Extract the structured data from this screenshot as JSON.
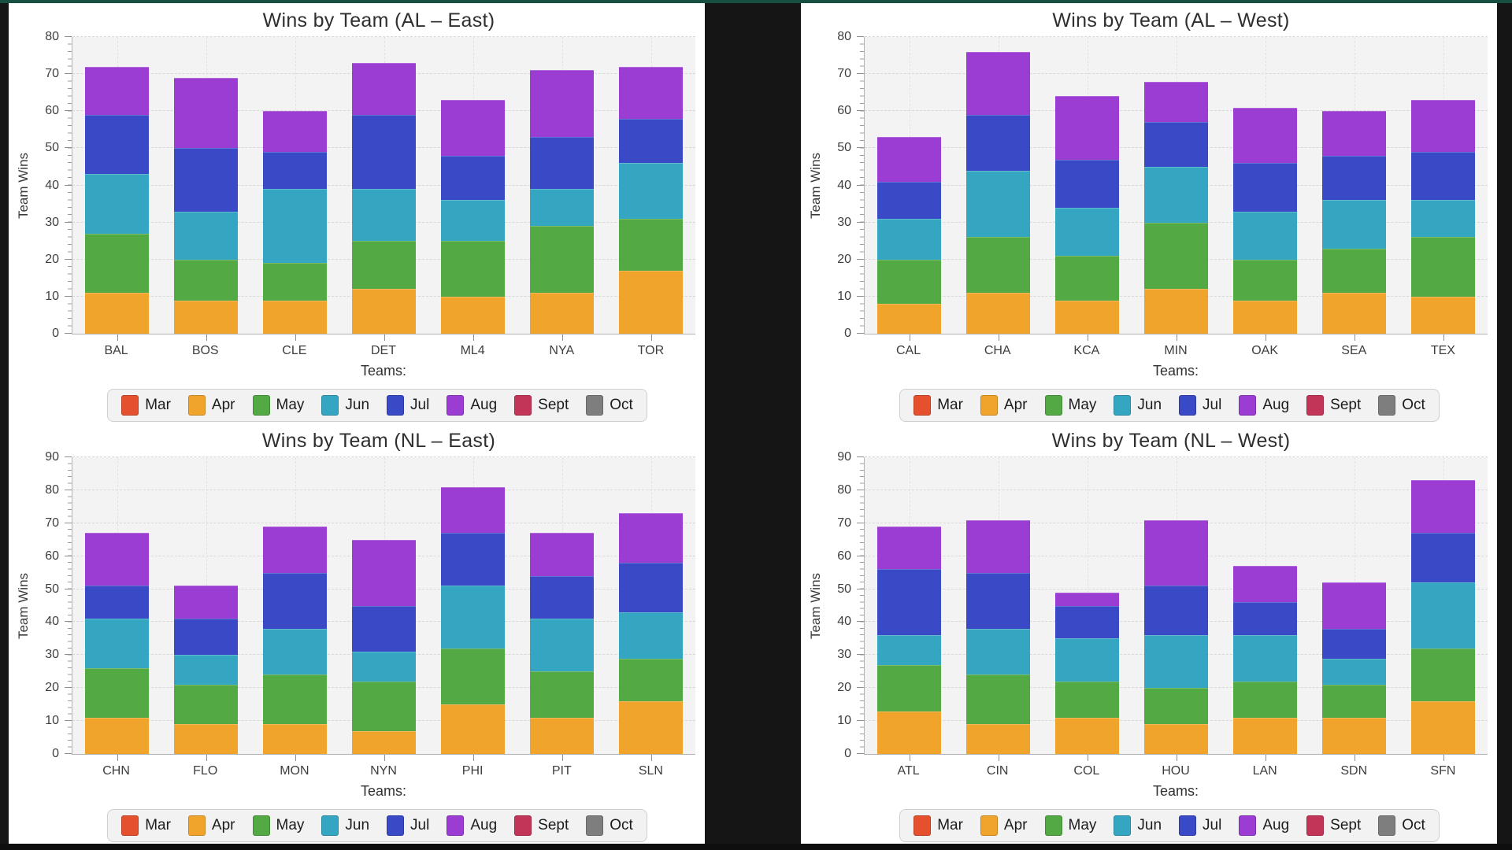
{
  "palette": {
    "page_bg": "#151515",
    "top_strip": "#155040",
    "panel_bg": "#ffffff",
    "plot_bg": "#f3f3f3"
  },
  "months": [
    {
      "label": "Mar",
      "color": "#E5502E"
    },
    {
      "label": "Apr",
      "color": "#F1A42C"
    },
    {
      "label": "May",
      "color": "#53A943"
    },
    {
      "label": "Jun",
      "color": "#35A6C2"
    },
    {
      "label": "Jul",
      "color": "#3A49C6"
    },
    {
      "label": "Aug",
      "color": "#9B3CD3"
    },
    {
      "label": "Sept",
      "color": "#C23458"
    },
    {
      "label": "Oct",
      "color": "#7E7E7E"
    }
  ],
  "chart_data": [
    {
      "type": "bar",
      "stacked": true,
      "title": "Wins by Team (AL – East)",
      "xlabel": "Teams:",
      "ylabel": "Team Wins",
      "ylim": [
        0,
        80
      ],
      "ytick_interval": 10,
      "grid": true,
      "legend_position": "bottom",
      "categories": [
        "BAL",
        "BOS",
        "CLE",
        "DET",
        "ML4",
        "NYA",
        "TOR"
      ],
      "series": [
        {
          "name": "Mar",
          "values": [
            0,
            0,
            0,
            0,
            0,
            0,
            0
          ]
        },
        {
          "name": "Apr",
          "values": [
            11,
            9,
            9,
            12,
            10,
            11,
            17
          ]
        },
        {
          "name": "May",
          "values": [
            16,
            11,
            10,
            13,
            15,
            18,
            14
          ]
        },
        {
          "name": "Jun",
          "values": [
            16,
            13,
            20,
            14,
            11,
            10,
            15
          ]
        },
        {
          "name": "Jul",
          "values": [
            16,
            17,
            10,
            20,
            12,
            14,
            12
          ]
        },
        {
          "name": "Aug",
          "values": [
            13,
            19,
            11,
            14,
            15,
            18,
            14
          ]
        },
        {
          "name": "Sept",
          "values": [
            0,
            0,
            0,
            0,
            0,
            0,
            0
          ]
        },
        {
          "name": "Oct",
          "values": [
            0,
            0,
            0,
            0,
            0,
            0,
            0
          ]
        }
      ]
    },
    {
      "type": "bar",
      "stacked": true,
      "title": "Wins by Team (AL – West)",
      "xlabel": "Teams:",
      "ylabel": "Team Wins",
      "ylim": [
        0,
        80
      ],
      "ytick_interval": 10,
      "grid": true,
      "legend_position": "bottom",
      "categories": [
        "CAL",
        "CHA",
        "KCA",
        "MIN",
        "OAK",
        "SEA",
        "TEX"
      ],
      "series": [
        {
          "name": "Mar",
          "values": [
            0,
            0,
            0,
            0,
            0,
            0,
            0
          ]
        },
        {
          "name": "Apr",
          "values": [
            8,
            11,
            9,
            12,
            9,
            11,
            10
          ]
        },
        {
          "name": "May",
          "values": [
            12,
            15,
            12,
            18,
            11,
            12,
            16
          ]
        },
        {
          "name": "Jun",
          "values": [
            11,
            18,
            13,
            15,
            13,
            13,
            10
          ]
        },
        {
          "name": "Jul",
          "values": [
            10,
            15,
            13,
            12,
            13,
            12,
            13
          ]
        },
        {
          "name": "Aug",
          "values": [
            12,
            17,
            17,
            11,
            15,
            12,
            14
          ]
        },
        {
          "name": "Sept",
          "values": [
            0,
            0,
            0,
            0,
            0,
            0,
            0
          ]
        },
        {
          "name": "Oct",
          "values": [
            0,
            0,
            0,
            0,
            0,
            0,
            0
          ]
        }
      ]
    },
    {
      "type": "bar",
      "stacked": true,
      "title": "Wins by Team (NL – East)",
      "xlabel": "Teams:",
      "ylabel": "Team Wins",
      "ylim": [
        0,
        90
      ],
      "ytick_interval": 10,
      "grid": true,
      "legend_position": "bottom",
      "categories": [
        "CHN",
        "FLO",
        "MON",
        "NYN",
        "PHI",
        "PIT",
        "SLN"
      ],
      "series": [
        {
          "name": "Mar",
          "values": [
            0,
            0,
            0,
            0,
            0,
            0,
            0
          ]
        },
        {
          "name": "Apr",
          "values": [
            11,
            9,
            9,
            7,
            15,
            11,
            16
          ]
        },
        {
          "name": "May",
          "values": [
            15,
            12,
            15,
            15,
            17,
            14,
            13
          ]
        },
        {
          "name": "Jun",
          "values": [
            15,
            9,
            14,
            9,
            19,
            16,
            14
          ]
        },
        {
          "name": "Jul",
          "values": [
            10,
            11,
            17,
            14,
            16,
            13,
            15
          ]
        },
        {
          "name": "Aug",
          "values": [
            16,
            10,
            14,
            20,
            14,
            13,
            15
          ]
        },
        {
          "name": "Sept",
          "values": [
            0,
            0,
            0,
            0,
            0,
            0,
            0
          ]
        },
        {
          "name": "Oct",
          "values": [
            0,
            0,
            0,
            0,
            0,
            0,
            0
          ]
        }
      ]
    },
    {
      "type": "bar",
      "stacked": true,
      "title": "Wins by Team (NL – West)",
      "xlabel": "Teams:",
      "ylabel": "Team Wins",
      "ylim": [
        0,
        90
      ],
      "ytick_interval": 10,
      "grid": true,
      "legend_position": "bottom",
      "categories": [
        "ATL",
        "CIN",
        "COL",
        "HOU",
        "LAN",
        "SDN",
        "SFN"
      ],
      "series": [
        {
          "name": "Mar",
          "values": [
            0,
            0,
            0,
            0,
            0,
            0,
            0
          ]
        },
        {
          "name": "Apr",
          "values": [
            13,
            9,
            11,
            9,
            11,
            11,
            16
          ]
        },
        {
          "name": "May",
          "values": [
            14,
            15,
            11,
            11,
            11,
            10,
            16
          ]
        },
        {
          "name": "Jun",
          "values": [
            9,
            14,
            13,
            16,
            14,
            8,
            20
          ]
        },
        {
          "name": "Jul",
          "values": [
            20,
            17,
            10,
            15,
            10,
            9,
            15
          ]
        },
        {
          "name": "Aug",
          "values": [
            13,
            16,
            4,
            20,
            11,
            14,
            16
          ]
        },
        {
          "name": "Sept",
          "values": [
            0,
            0,
            0,
            0,
            0,
            0,
            0
          ]
        },
        {
          "name": "Oct",
          "values": [
            0,
            0,
            0,
            0,
            0,
            0,
            0
          ]
        }
      ]
    }
  ]
}
